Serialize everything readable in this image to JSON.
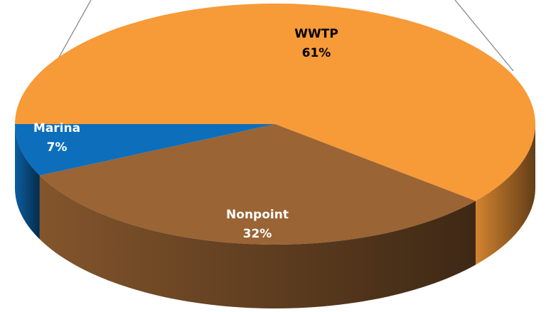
{
  "chart_data": {
    "type": "pie",
    "categories": [
      "WWTP",
      "Nonpoint",
      "Marina"
    ],
    "values": [
      61,
      32,
      7
    ],
    "value_labels": [
      "61%",
      "32%",
      "7%"
    ],
    "colors": [
      "#f79a38",
      "#9a6434",
      "#0d6ebc"
    ]
  }
}
